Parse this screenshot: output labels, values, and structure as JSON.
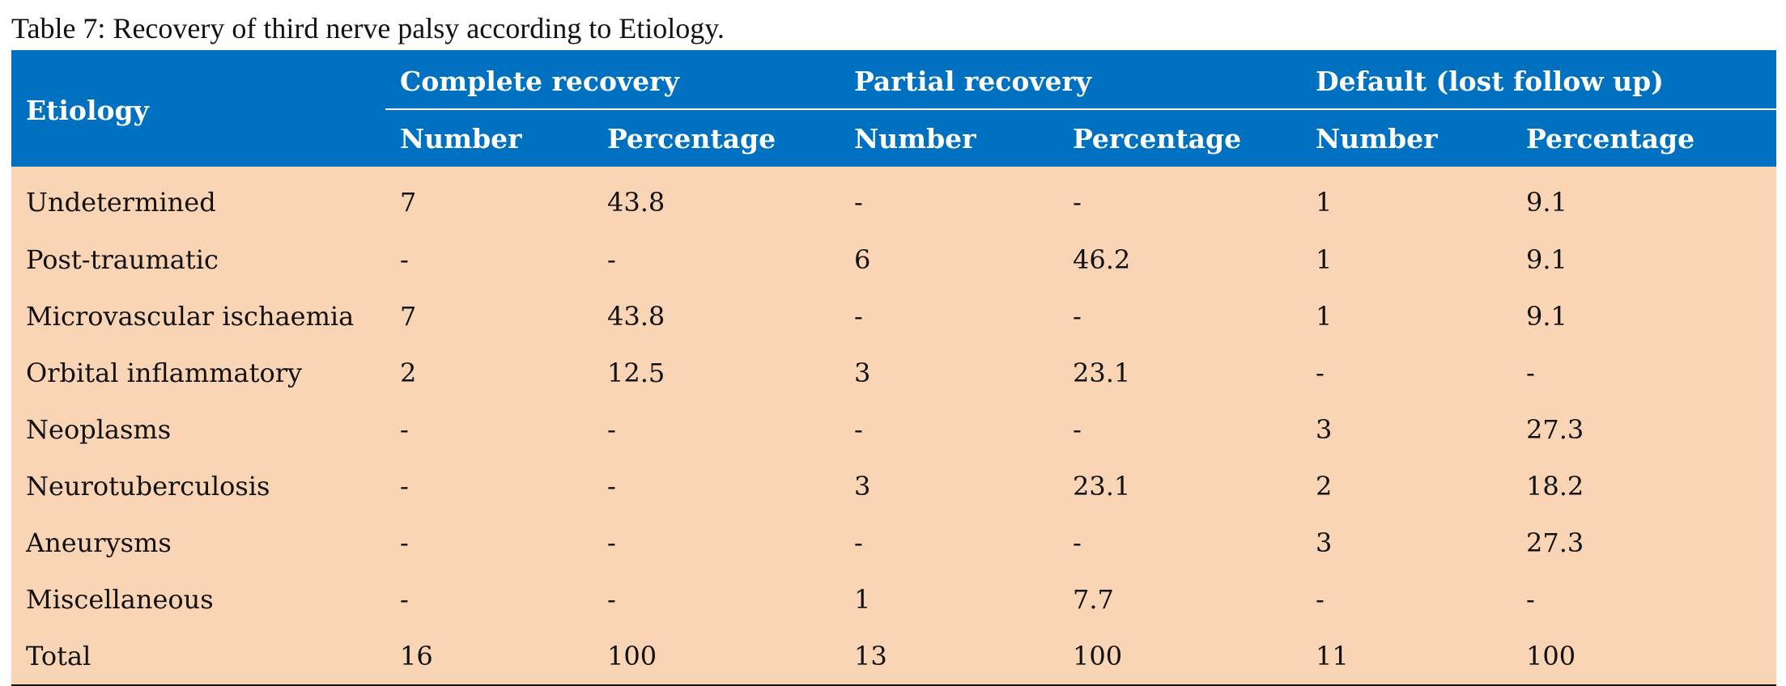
{
  "caption": "Table 7: Recovery of third nerve palsy according to Etiology.",
  "header": {
    "etiology": "Etiology",
    "groups": [
      "Complete recovery",
      "Partial recovery",
      "Default (lost follow up)"
    ],
    "subcolumns": [
      "Number",
      "Percentage",
      "Number",
      "Percentage",
      "Number",
      "Percentage"
    ]
  },
  "rows": [
    [
      "Undetermined",
      "7",
      "43.8",
      "-",
      "-",
      "1",
      "9.1"
    ],
    [
      "Post-traumatic",
      "-",
      "-",
      "6",
      "46.2",
      "1",
      "9.1"
    ],
    [
      "Microvascular ischaemia",
      "7",
      "43.8",
      "-",
      "-",
      "1",
      "9.1"
    ],
    [
      "Orbital inflammatory",
      "2",
      "12.5",
      "3",
      "23.1",
      "-",
      "-"
    ],
    [
      "Neoplasms",
      "-",
      "-",
      "-",
      "-",
      "3",
      "27.3"
    ],
    [
      "Neurotuberculosis",
      "-",
      "-",
      "3",
      "23.1",
      "2",
      "18.2"
    ],
    [
      "Aneurysms",
      "-",
      "-",
      "-",
      "-",
      "3",
      "27.3"
    ],
    [
      "Miscellaneous",
      "-",
      "-",
      "1",
      "7.7",
      "-",
      "-"
    ],
    [
      "Total",
      "16",
      "100",
      "13",
      "100",
      "11",
      "100"
    ]
  ],
  "colors": {
    "header_bg": "#0070c0",
    "body_bg": "#f9d4b5",
    "header_text": "#ffffff"
  }
}
